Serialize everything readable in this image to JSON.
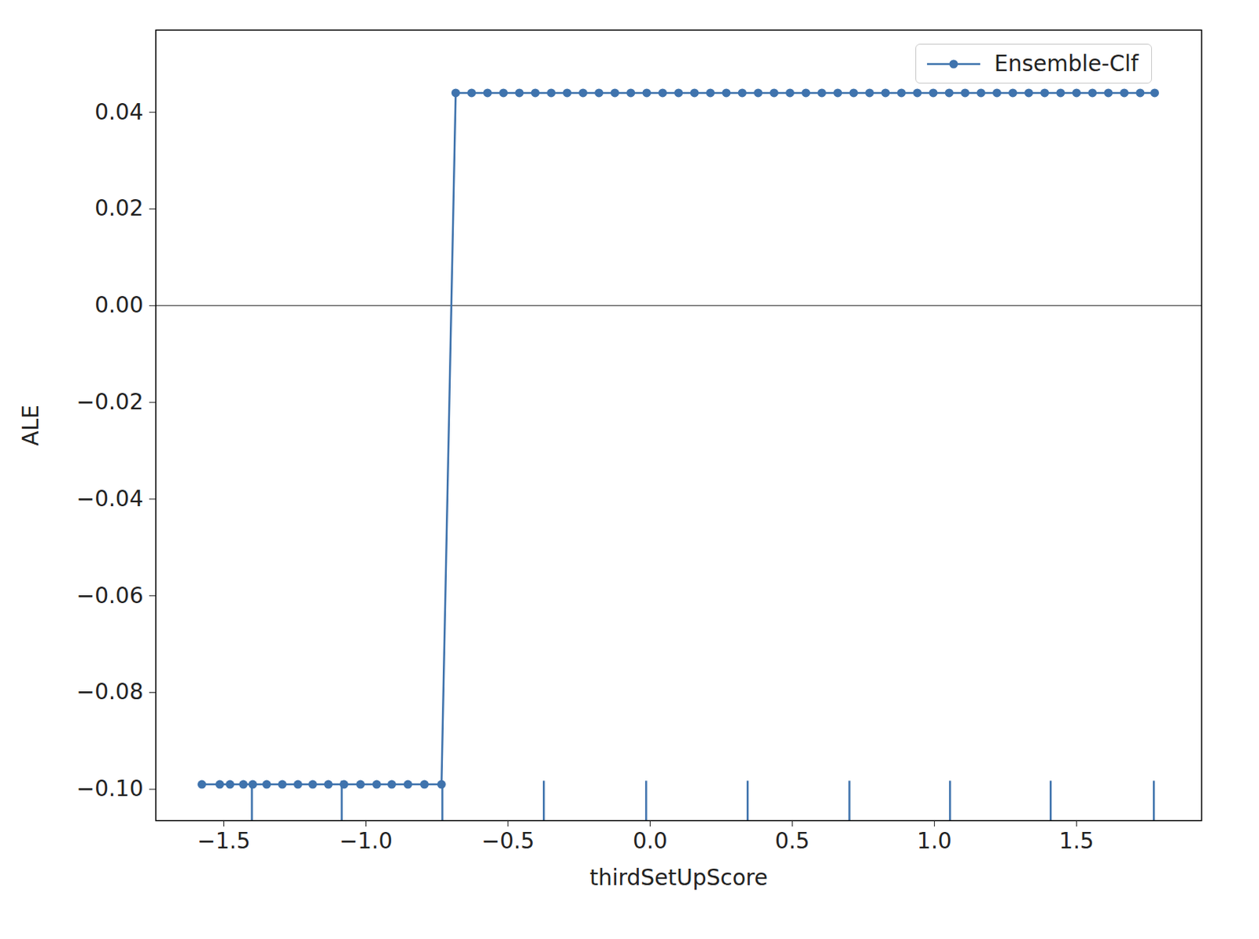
{
  "chart_data": {
    "type": "line",
    "x_label": "thirdSetUpScore",
    "y_label": "ALE",
    "series": [
      {
        "name": "Ensemble-Clf",
        "color": "#3f73ad",
        "marker": "circle",
        "line_style": "solid",
        "x": [
          -1.577,
          -1.514,
          -1.478,
          -1.431,
          -1.398,
          -1.349,
          -1.294,
          -1.239,
          -1.187,
          -1.132,
          -1.077,
          -1.019,
          -0.962,
          -0.909,
          -0.852,
          -0.794,
          -0.734,
          -0.684,
          -0.628,
          -0.572,
          -0.516,
          -0.46,
          -0.404,
          -0.348,
          -0.292,
          -0.236,
          -0.18,
          -0.124,
          -0.068,
          -0.012,
          0.044,
          0.1,
          0.156,
          0.212,
          0.268,
          0.324,
          0.38,
          0.436,
          0.492,
          0.548,
          0.604,
          0.66,
          0.716,
          0.772,
          0.828,
          0.884,
          0.94,
          0.996,
          1.052,
          1.108,
          1.164,
          1.22,
          1.276,
          1.332,
          1.388,
          1.444,
          1.5,
          1.556,
          1.612,
          1.668,
          1.724,
          1.775
        ],
        "values": [
          -0.099,
          -0.099,
          -0.099,
          -0.099,
          -0.099,
          -0.099,
          -0.099,
          -0.099,
          -0.099,
          -0.099,
          -0.099,
          -0.099,
          -0.099,
          -0.099,
          -0.099,
          -0.099,
          -0.099,
          0.044,
          0.044,
          0.044,
          0.044,
          0.044,
          0.044,
          0.044,
          0.044,
          0.044,
          0.044,
          0.044,
          0.044,
          0.044,
          0.044,
          0.044,
          0.044,
          0.044,
          0.044,
          0.044,
          0.044,
          0.044,
          0.044,
          0.044,
          0.044,
          0.044,
          0.044,
          0.044,
          0.044,
          0.044,
          0.044,
          0.044,
          0.044,
          0.044,
          0.044,
          0.044,
          0.044,
          0.044,
          0.044,
          0.044,
          0.044,
          0.044,
          0.044,
          0.044,
          0.044,
          0.044
        ]
      }
    ],
    "rug": [
      -1.401,
      -1.085,
      -0.731,
      -0.374,
      -0.014,
      0.343,
      0.701,
      1.055,
      1.409,
      1.772
    ],
    "hline": 0,
    "xlim": [
      -1.739,
      1.94
    ],
    "ylim": [
      -0.1065,
      0.057
    ],
    "xticks": [
      {
        "value": -1.5,
        "label": "−1.5"
      },
      {
        "value": -1,
        "label": "−1.0"
      },
      {
        "value": -0.5,
        "label": "−0.5"
      },
      {
        "value": 0,
        "label": "0.0"
      },
      {
        "value": 0.5,
        "label": "0.5"
      },
      {
        "value": 1,
        "label": "1.0"
      },
      {
        "value": 1.5,
        "label": "1.5"
      }
    ],
    "yticks": [
      {
        "value": -0.1,
        "label": "−0.10"
      },
      {
        "value": -0.08,
        "label": "−0.08"
      },
      {
        "value": -0.06,
        "label": "−0.06"
      },
      {
        "value": -0.04,
        "label": "−0.04"
      },
      {
        "value": -0.02,
        "label": "−0.02"
      },
      {
        "value": 0,
        "label": "0.00"
      },
      {
        "value": 0.02,
        "label": "0.02"
      },
      {
        "value": 0.04,
        "label": "0.04"
      }
    ],
    "legend": "upper right",
    "grid": false
  }
}
